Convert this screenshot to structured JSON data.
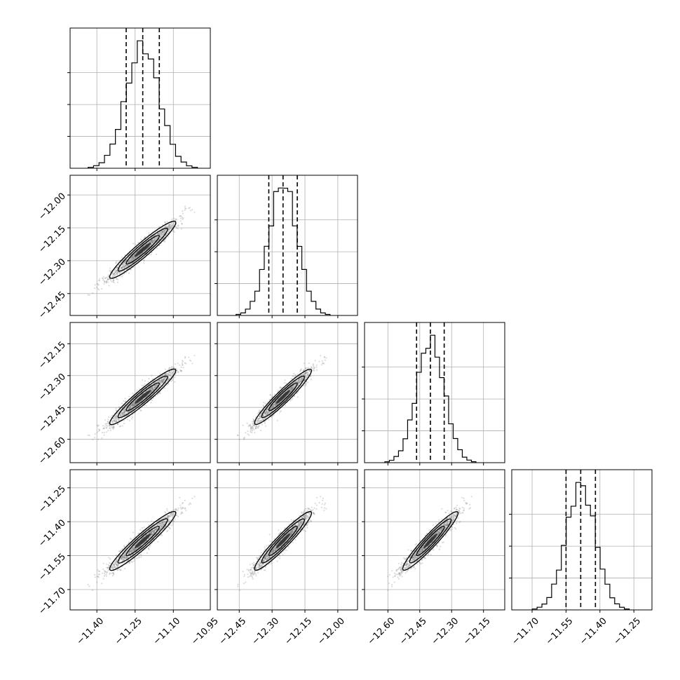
{
  "chart_data": {
    "type": "corner",
    "grid": true,
    "parameters": [
      {
        "median": -11.22,
        "q16": -11.285,
        "q84": -11.155,
        "sigma": 0.065,
        "range": [
          -11.505,
          -10.955
        ],
        "ticks": [
          -11.4,
          -11.25,
          -11.1,
          -10.95
        ],
        "tick_labels": [
          "−11.40",
          "−11.25",
          "−11.10",
          "−10.95"
        ]
      },
      {
        "median": -12.25,
        "q16": -12.315,
        "q84": -12.185,
        "sigma": 0.065,
        "range": [
          -12.55,
          -11.91
        ],
        "ticks": [
          -12.45,
          -12.3,
          -12.15,
          -12.0
        ],
        "tick_labels": [
          "−12.45",
          "−12.30",
          "−12.15",
          "−12.00"
        ]
      },
      {
        "median": -12.4,
        "q16": -12.465,
        "q84": -12.335,
        "sigma": 0.065,
        "range": [
          -12.71,
          -12.05
        ],
        "ticks": [
          -12.6,
          -12.45,
          -12.3,
          -12.15
        ],
        "tick_labels": [
          "−12.60",
          "−12.45",
          "−12.30",
          "−12.15"
        ]
      },
      {
        "median": -11.485,
        "q16": -11.55,
        "q84": -11.42,
        "sigma": 0.065,
        "range": [
          -11.79,
          -11.17
        ],
        "ticks": [
          -11.7,
          -11.55,
          -11.4,
          -11.25
        ],
        "tick_labels": [
          "−11.70",
          "−11.55",
          "−11.40",
          "−11.25"
        ]
      }
    ],
    "correlation": 0.95,
    "samples_color": "#808080",
    "contour_fill": [
      "#e6e6e6",
      "#b4b4b4",
      "#7a7a7a",
      "#2d2d2d"
    ],
    "line_color": "#000000"
  }
}
